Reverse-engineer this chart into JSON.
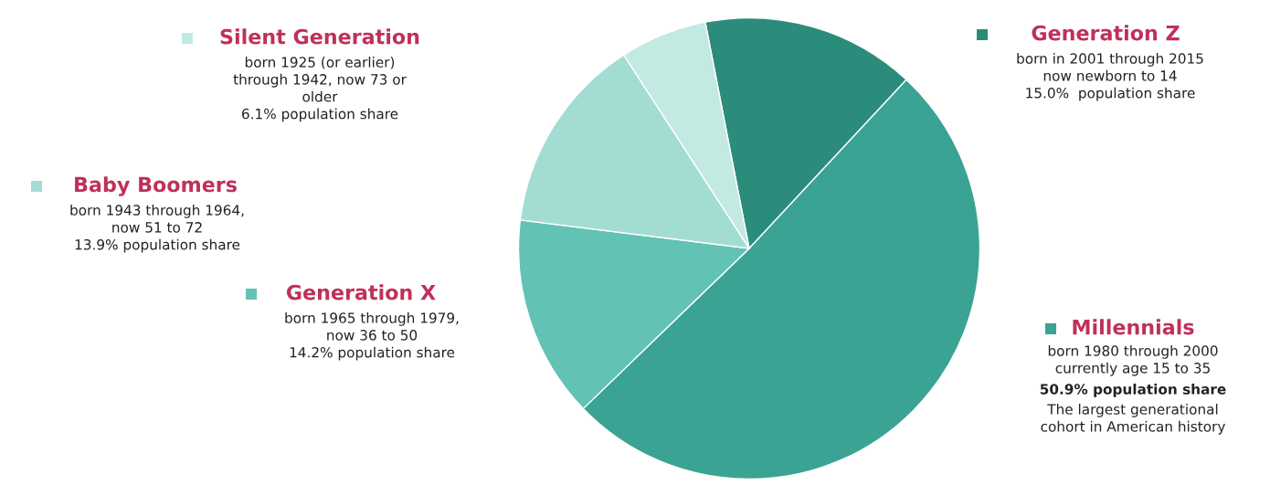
{
  "chart_data": {
    "type": "pie",
    "categories": [
      "Generation Z",
      "Millennials",
      "Generation X",
      "Baby Boomers",
      "Silent Generation"
    ],
    "values": [
      15.0,
      50.9,
      14.2,
      13.9,
      6.1
    ],
    "colors": [
      "#2b8c7b",
      "#3aa393",
      "#62c2b3",
      "#a3dcd3",
      "#c3e9e3"
    ],
    "legend": "left",
    "annotations": [
      "born in 2001 through 2015\nnow newborn to 14\n15.0%  population share",
      "born 1980 through 2000\ncurrently age 15 to 35",
      "50.9% population share",
      "The largest generational\ncohort in American history",
      "born 1965 through 1979,\nnow 36 to 50\n14.2% population share",
      "born 1943 through 1964,\nnow 51 to 72\n13.9% population share",
      "born 1925 (or earlier)\nthrough 1942, now 73 or\nolder\n6.1% population share"
    ]
  }
}
